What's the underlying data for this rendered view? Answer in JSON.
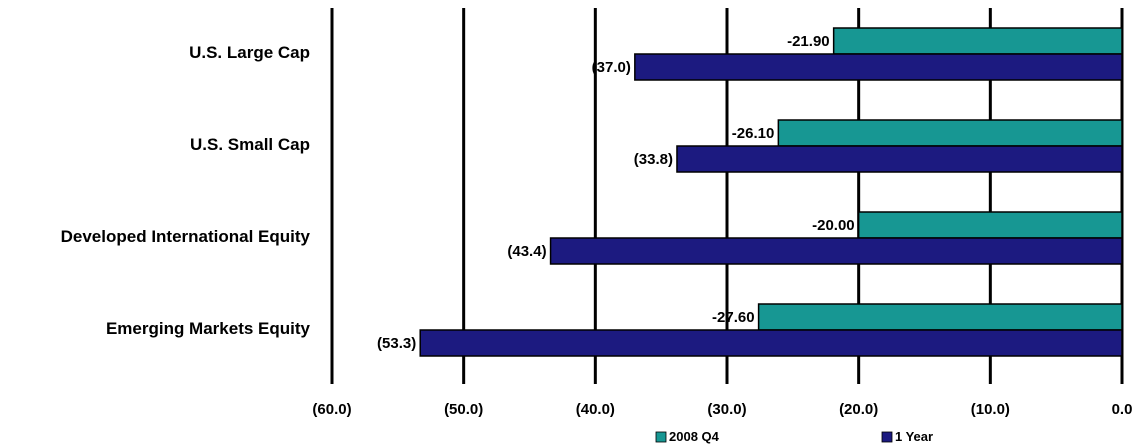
{
  "chart_data": {
    "type": "bar",
    "orientation": "horizontal",
    "categories": [
      "U.S. Large Cap",
      "U.S. Small Cap",
      "Developed International  Equity",
      "Emerging Markets Equity"
    ],
    "series": [
      {
        "name": "2008 Q4",
        "color": "#179793",
        "values": [
          -21.9,
          -26.1,
          -20.0,
          -27.6
        ],
        "labels": [
          "-21.90",
          "-26.10",
          "-20.00",
          "-27.60"
        ]
      },
      {
        "name": "1 Year",
        "color": "#1c1a80",
        "values": [
          -37.0,
          -33.8,
          -43.4,
          -53.3
        ],
        "labels": [
          "(37.0)",
          "(33.8)",
          "(43.4)",
          "(53.3)"
        ]
      }
    ],
    "xlim": [
      -60,
      0
    ],
    "xticks": [
      -60,
      -50,
      -40,
      -30,
      -20,
      -10,
      0
    ],
    "xtick_labels": [
      "(60.0)",
      "(50.0)",
      "(40.0)",
      "(30.0)",
      "(20.0)",
      "(10.0)",
      "0.0"
    ],
    "grid": "vertical",
    "legend_position": "bottom",
    "title": "",
    "xlabel": "",
    "ylabel": ""
  }
}
